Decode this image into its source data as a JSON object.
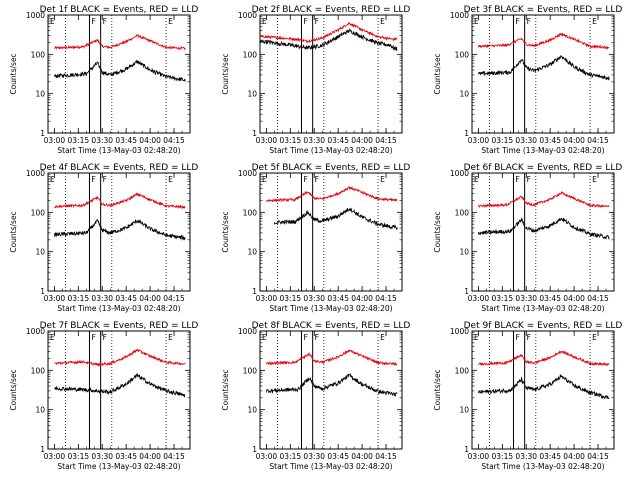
{
  "chart_data": {
    "type": "line",
    "layout": "3x3 grid of panels",
    "yscale": "log",
    "ylim": [
      1,
      1000
    ],
    "ylabel": "Counts/sec",
    "xlabel": "Start Time (13-May-03 02:48:20)",
    "xlim": [
      "02:56",
      "04:25"
    ],
    "xticks": [
      "03:00",
      "03:15",
      "03:30",
      "03:45",
      "04:00",
      "04:15"
    ],
    "yticks": [
      "1",
      "10",
      "100",
      "1000"
    ],
    "series_colors": {
      "events": "#000000",
      "lld": "#e8000b"
    },
    "markers": [
      {
        "label": "E",
        "time": "02:56"
      },
      {
        "label": "F",
        "time": "03:22"
      },
      {
        "label": "F",
        "time": "03:29"
      },
      {
        "label": "E",
        "time": "04:10"
      }
    ],
    "marker_lines": {
      "solid": [
        "03:22",
        "03:29"
      ],
      "dotted": [
        "03:07",
        "03:36",
        "04:10"
      ]
    },
    "panels": [
      {
        "title": "Det 1f BLACK = Events, RED = LLD",
        "data_start": "03:00",
        "data_end": "04:22",
        "events": [
          [
            0,
            28
          ],
          [
            20,
            32
          ],
          [
            27,
            60
          ],
          [
            30,
            35
          ],
          [
            35,
            30
          ],
          [
            45,
            42
          ],
          [
            52,
            65
          ],
          [
            60,
            40
          ],
          [
            70,
            27
          ],
          [
            82,
            22
          ]
        ],
        "lld": [
          [
            0,
            145
          ],
          [
            18,
            155
          ],
          [
            27,
            230
          ],
          [
            30,
            160
          ],
          [
            35,
            150
          ],
          [
            45,
            210
          ],
          [
            52,
            300
          ],
          [
            60,
            220
          ],
          [
            70,
            150
          ],
          [
            82,
            140
          ]
        ]
      },
      {
        "title": "Det 2f BLACK = Events, RED = LLD",
        "data_start": "02:56",
        "data_end": "04:22",
        "events": [
          [
            0,
            210
          ],
          [
            20,
            160
          ],
          [
            26,
            145
          ],
          [
            35,
            170
          ],
          [
            45,
            280
          ],
          [
            52,
            400
          ],
          [
            60,
            280
          ],
          [
            70,
            190
          ],
          [
            78,
            170
          ],
          [
            80,
            140
          ],
          [
            86,
            150
          ]
        ],
        "lld": [
          [
            0,
            280
          ],
          [
            20,
            240
          ],
          [
            26,
            215
          ],
          [
            35,
            260
          ],
          [
            45,
            420
          ],
          [
            52,
            620
          ],
          [
            60,
            420
          ],
          [
            70,
            280
          ],
          [
            80,
            240
          ],
          [
            86,
            280
          ]
        ]
      },
      {
        "title": "Det 3f BLACK = Events, RED = LLD",
        "data_start": "03:00",
        "data_end": "04:22",
        "events": [
          [
            0,
            32
          ],
          [
            20,
            35
          ],
          [
            27,
            75
          ],
          [
            30,
            45
          ],
          [
            35,
            38
          ],
          [
            45,
            55
          ],
          [
            52,
            90
          ],
          [
            60,
            48
          ],
          [
            70,
            30
          ],
          [
            82,
            25
          ]
        ],
        "lld": [
          [
            0,
            160
          ],
          [
            18,
            170
          ],
          [
            27,
            250
          ],
          [
            30,
            180
          ],
          [
            35,
            165
          ],
          [
            45,
            230
          ],
          [
            52,
            330
          ],
          [
            60,
            240
          ],
          [
            70,
            160
          ],
          [
            82,
            150
          ]
        ]
      },
      {
        "title": "Det 4f BLACK = Events, RED = LLD",
        "data_start": "03:00",
        "data_end": "04:22",
        "events": [
          [
            0,
            27
          ],
          [
            20,
            30
          ],
          [
            27,
            60
          ],
          [
            30,
            35
          ],
          [
            35,
            30
          ],
          [
            45,
            40
          ],
          [
            52,
            62
          ],
          [
            60,
            38
          ],
          [
            70,
            26
          ],
          [
            82,
            22
          ]
        ],
        "lld": [
          [
            0,
            140
          ],
          [
            18,
            150
          ],
          [
            27,
            240
          ],
          [
            30,
            160
          ],
          [
            35,
            150
          ],
          [
            45,
            200
          ],
          [
            52,
            290
          ],
          [
            60,
            210
          ],
          [
            70,
            145
          ],
          [
            82,
            135
          ]
        ]
      },
      {
        "title": "Det 5f BLACK = Events, RED = LLD",
        "data_start": "03:05",
        "data_end": "04:22",
        "events": [
          [
            5,
            55
          ],
          [
            18,
            58
          ],
          [
            26,
            100
          ],
          [
            30,
            65
          ],
          [
            35,
            60
          ],
          [
            45,
            80
          ],
          [
            52,
            125
          ],
          [
            60,
            75
          ],
          [
            70,
            50
          ],
          [
            82,
            40
          ]
        ],
        "lld": [
          [
            0,
            200
          ],
          [
            18,
            210
          ],
          [
            26,
            330
          ],
          [
            30,
            230
          ],
          [
            35,
            220
          ],
          [
            45,
            300
          ],
          [
            52,
            430
          ],
          [
            60,
            320
          ],
          [
            70,
            220
          ],
          [
            82,
            200
          ]
        ]
      },
      {
        "title": "Det 6f BLACK = Events, RED = LLD",
        "data_start": "03:00",
        "data_end": "04:22",
        "events": [
          [
            0,
            30
          ],
          [
            20,
            33
          ],
          [
            27,
            65
          ],
          [
            30,
            40
          ],
          [
            35,
            34
          ],
          [
            45,
            46
          ],
          [
            52,
            70
          ],
          [
            60,
            42
          ],
          [
            70,
            28
          ],
          [
            82,
            23
          ]
        ],
        "lld": [
          [
            0,
            145
          ],
          [
            18,
            155
          ],
          [
            27,
            250
          ],
          [
            30,
            170
          ],
          [
            35,
            155
          ],
          [
            45,
            215
          ],
          [
            52,
            310
          ],
          [
            60,
            225
          ],
          [
            70,
            150
          ],
          [
            82,
            140
          ]
        ]
      },
      {
        "title": "Det 7f BLACK = Events, RED = LLD",
        "data_start": "03:00",
        "data_end": "04:22",
        "events": [
          [
            0,
            35
          ],
          [
            20,
            32
          ],
          [
            27,
            30
          ],
          [
            35,
            28
          ],
          [
            45,
            45
          ],
          [
            52,
            75
          ],
          [
            60,
            45
          ],
          [
            70,
            30
          ],
          [
            82,
            23
          ]
        ],
        "lld": [
          [
            0,
            150
          ],
          [
            18,
            165
          ],
          [
            27,
            140
          ],
          [
            35,
            150
          ],
          [
            45,
            220
          ],
          [
            52,
            330
          ],
          [
            60,
            230
          ],
          [
            70,
            160
          ],
          [
            82,
            145
          ]
        ]
      },
      {
        "title": "Det 8f BLACK = Events, RED = LLD",
        "data_start": "03:00",
        "data_end": "04:22",
        "events": [
          [
            0,
            30
          ],
          [
            20,
            33
          ],
          [
            27,
            65
          ],
          [
            30,
            40
          ],
          [
            35,
            34
          ],
          [
            45,
            48
          ],
          [
            52,
            75
          ],
          [
            60,
            44
          ],
          [
            70,
            29
          ],
          [
            82,
            24
          ]
        ],
        "lld": [
          [
            0,
            150
          ],
          [
            18,
            160
          ],
          [
            27,
            260
          ],
          [
            30,
            175
          ],
          [
            35,
            160
          ],
          [
            45,
            220
          ],
          [
            52,
            320
          ],
          [
            60,
            230
          ],
          [
            70,
            155
          ],
          [
            82,
            145
          ]
        ]
      },
      {
        "title": "Det 9f BLACK = Events, RED = LLD",
        "data_start": "03:00",
        "data_end": "04:22",
        "events": [
          [
            0,
            28
          ],
          [
            20,
            31
          ],
          [
            27,
            58
          ],
          [
            30,
            36
          ],
          [
            35,
            32
          ],
          [
            45,
            44
          ],
          [
            52,
            70
          ],
          [
            60,
            41
          ],
          [
            70,
            27
          ],
          [
            82,
            20
          ]
        ],
        "lld": [
          [
            0,
            145
          ],
          [
            18,
            155
          ],
          [
            27,
            245
          ],
          [
            30,
            165
          ],
          [
            35,
            155
          ],
          [
            45,
            210
          ],
          [
            52,
            305
          ],
          [
            60,
            220
          ],
          [
            70,
            150
          ],
          [
            82,
            140
          ]
        ]
      }
    ]
  }
}
